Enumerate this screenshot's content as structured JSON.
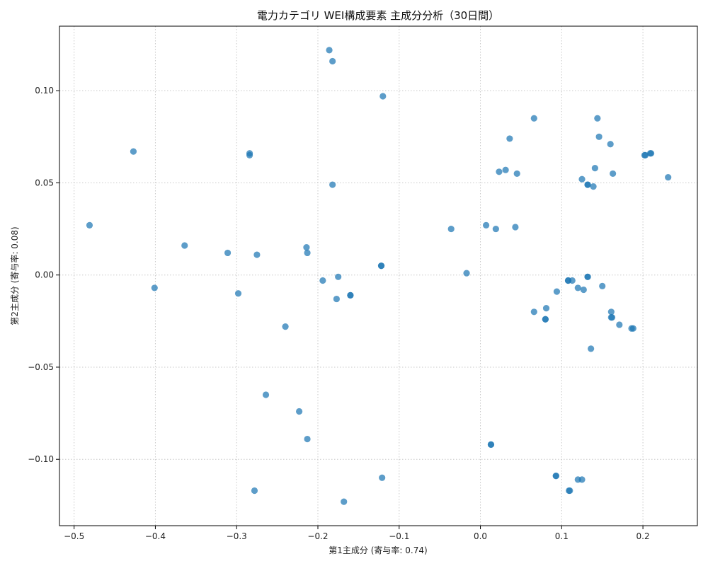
{
  "chart_data": {
    "type": "scatter",
    "title": "電力カテゴリ WEI構成要素 主成分分析（30日間）",
    "xlabel": "第1主成分 (寄与率: 0.74)",
    "ylabel": "第2主成分 (寄与率: 0.08)",
    "xlim": [
      -0.518,
      0.267
    ],
    "ylim": [
      -0.136,
      0.135
    ],
    "xticks": [
      -0.5,
      -0.4,
      -0.3,
      -0.2,
      -0.1,
      0.0,
      0.1,
      0.2
    ],
    "xtick_labels": [
      "−0.5",
      "−0.4",
      "−0.3",
      "−0.2",
      "−0.1",
      "0.0",
      "0.1",
      "0.2"
    ],
    "yticks": [
      -0.1,
      -0.05,
      0.0,
      0.05,
      0.1
    ],
    "ytick_labels": [
      "−0.10",
      "−0.05",
      "0.00",
      "0.05",
      "0.10"
    ],
    "grid": true,
    "color": "#1f77b4",
    "points": [
      [
        -0.186,
        0.122
      ],
      [
        -0.182,
        0.116
      ],
      [
        -0.12,
        0.097
      ],
      [
        -0.427,
        0.067
      ],
      [
        -0.284,
        0.066
      ],
      [
        -0.284,
        0.065
      ],
      [
        -0.182,
        0.049
      ],
      [
        -0.481,
        0.027
      ],
      [
        -0.364,
        0.016
      ],
      [
        -0.311,
        0.012
      ],
      [
        -0.275,
        0.011
      ],
      [
        -0.214,
        0.015
      ],
      [
        -0.213,
        0.012
      ],
      [
        -0.122,
        0.005
      ],
      [
        -0.122,
        0.005
      ],
      [
        -0.401,
        -0.007
      ],
      [
        -0.298,
        -0.01
      ],
      [
        -0.194,
        -0.003
      ],
      [
        -0.175,
        -0.001
      ],
      [
        -0.177,
        -0.013
      ],
      [
        -0.16,
        -0.011
      ],
      [
        -0.16,
        -0.011
      ],
      [
        -0.24,
        -0.028
      ],
      [
        -0.264,
        -0.065
      ],
      [
        -0.223,
        -0.074
      ],
      [
        -0.213,
        -0.089
      ],
      [
        -0.121,
        -0.11
      ],
      [
        -0.278,
        -0.117
      ],
      [
        -0.168,
        -0.123
      ],
      [
        0.066,
        0.085
      ],
      [
        0.036,
        0.074
      ],
      [
        0.031,
        0.057
      ],
      [
        0.023,
        0.056
      ],
      [
        0.045,
        0.055
      ],
      [
        -0.036,
        0.025
      ],
      [
        0.007,
        0.027
      ],
      [
        0.019,
        0.025
      ],
      [
        0.043,
        0.026
      ],
      [
        -0.017,
        0.001
      ],
      [
        0.144,
        0.085
      ],
      [
        0.146,
        0.075
      ],
      [
        0.16,
        0.071
      ],
      [
        0.141,
        0.058
      ],
      [
        0.125,
        0.052
      ],
      [
        0.132,
        0.049
      ],
      [
        0.132,
        0.049
      ],
      [
        0.139,
        0.048
      ],
      [
        0.163,
        0.055
      ],
      [
        0.202,
        0.065
      ],
      [
        0.203,
        0.065
      ],
      [
        0.209,
        0.066
      ],
      [
        0.21,
        0.066
      ],
      [
        0.231,
        0.053
      ],
      [
        0.108,
        -0.003
      ],
      [
        0.108,
        -0.003
      ],
      [
        0.113,
        -0.003
      ],
      [
        0.132,
        -0.001
      ],
      [
        0.132,
        -0.001
      ],
      [
        0.094,
        -0.009
      ],
      [
        0.12,
        -0.007
      ],
      [
        0.127,
        -0.008
      ],
      [
        0.15,
        -0.006
      ],
      [
        0.066,
        -0.02
      ],
      [
        0.081,
        -0.018
      ],
      [
        0.08,
        -0.024
      ],
      [
        0.08,
        -0.024
      ],
      [
        0.161,
        -0.02
      ],
      [
        0.161,
        -0.023
      ],
      [
        0.162,
        -0.023
      ],
      [
        0.171,
        -0.027
      ],
      [
        0.186,
        -0.029
      ],
      [
        0.188,
        -0.029
      ],
      [
        0.136,
        -0.04
      ],
      [
        0.013,
        -0.092
      ],
      [
        0.013,
        -0.092
      ],
      [
        0.093,
        -0.109
      ],
      [
        0.093,
        -0.109
      ],
      [
        0.12,
        -0.111
      ],
      [
        0.125,
        -0.111
      ],
      [
        0.109,
        -0.117
      ],
      [
        0.11,
        -0.117
      ]
    ]
  }
}
